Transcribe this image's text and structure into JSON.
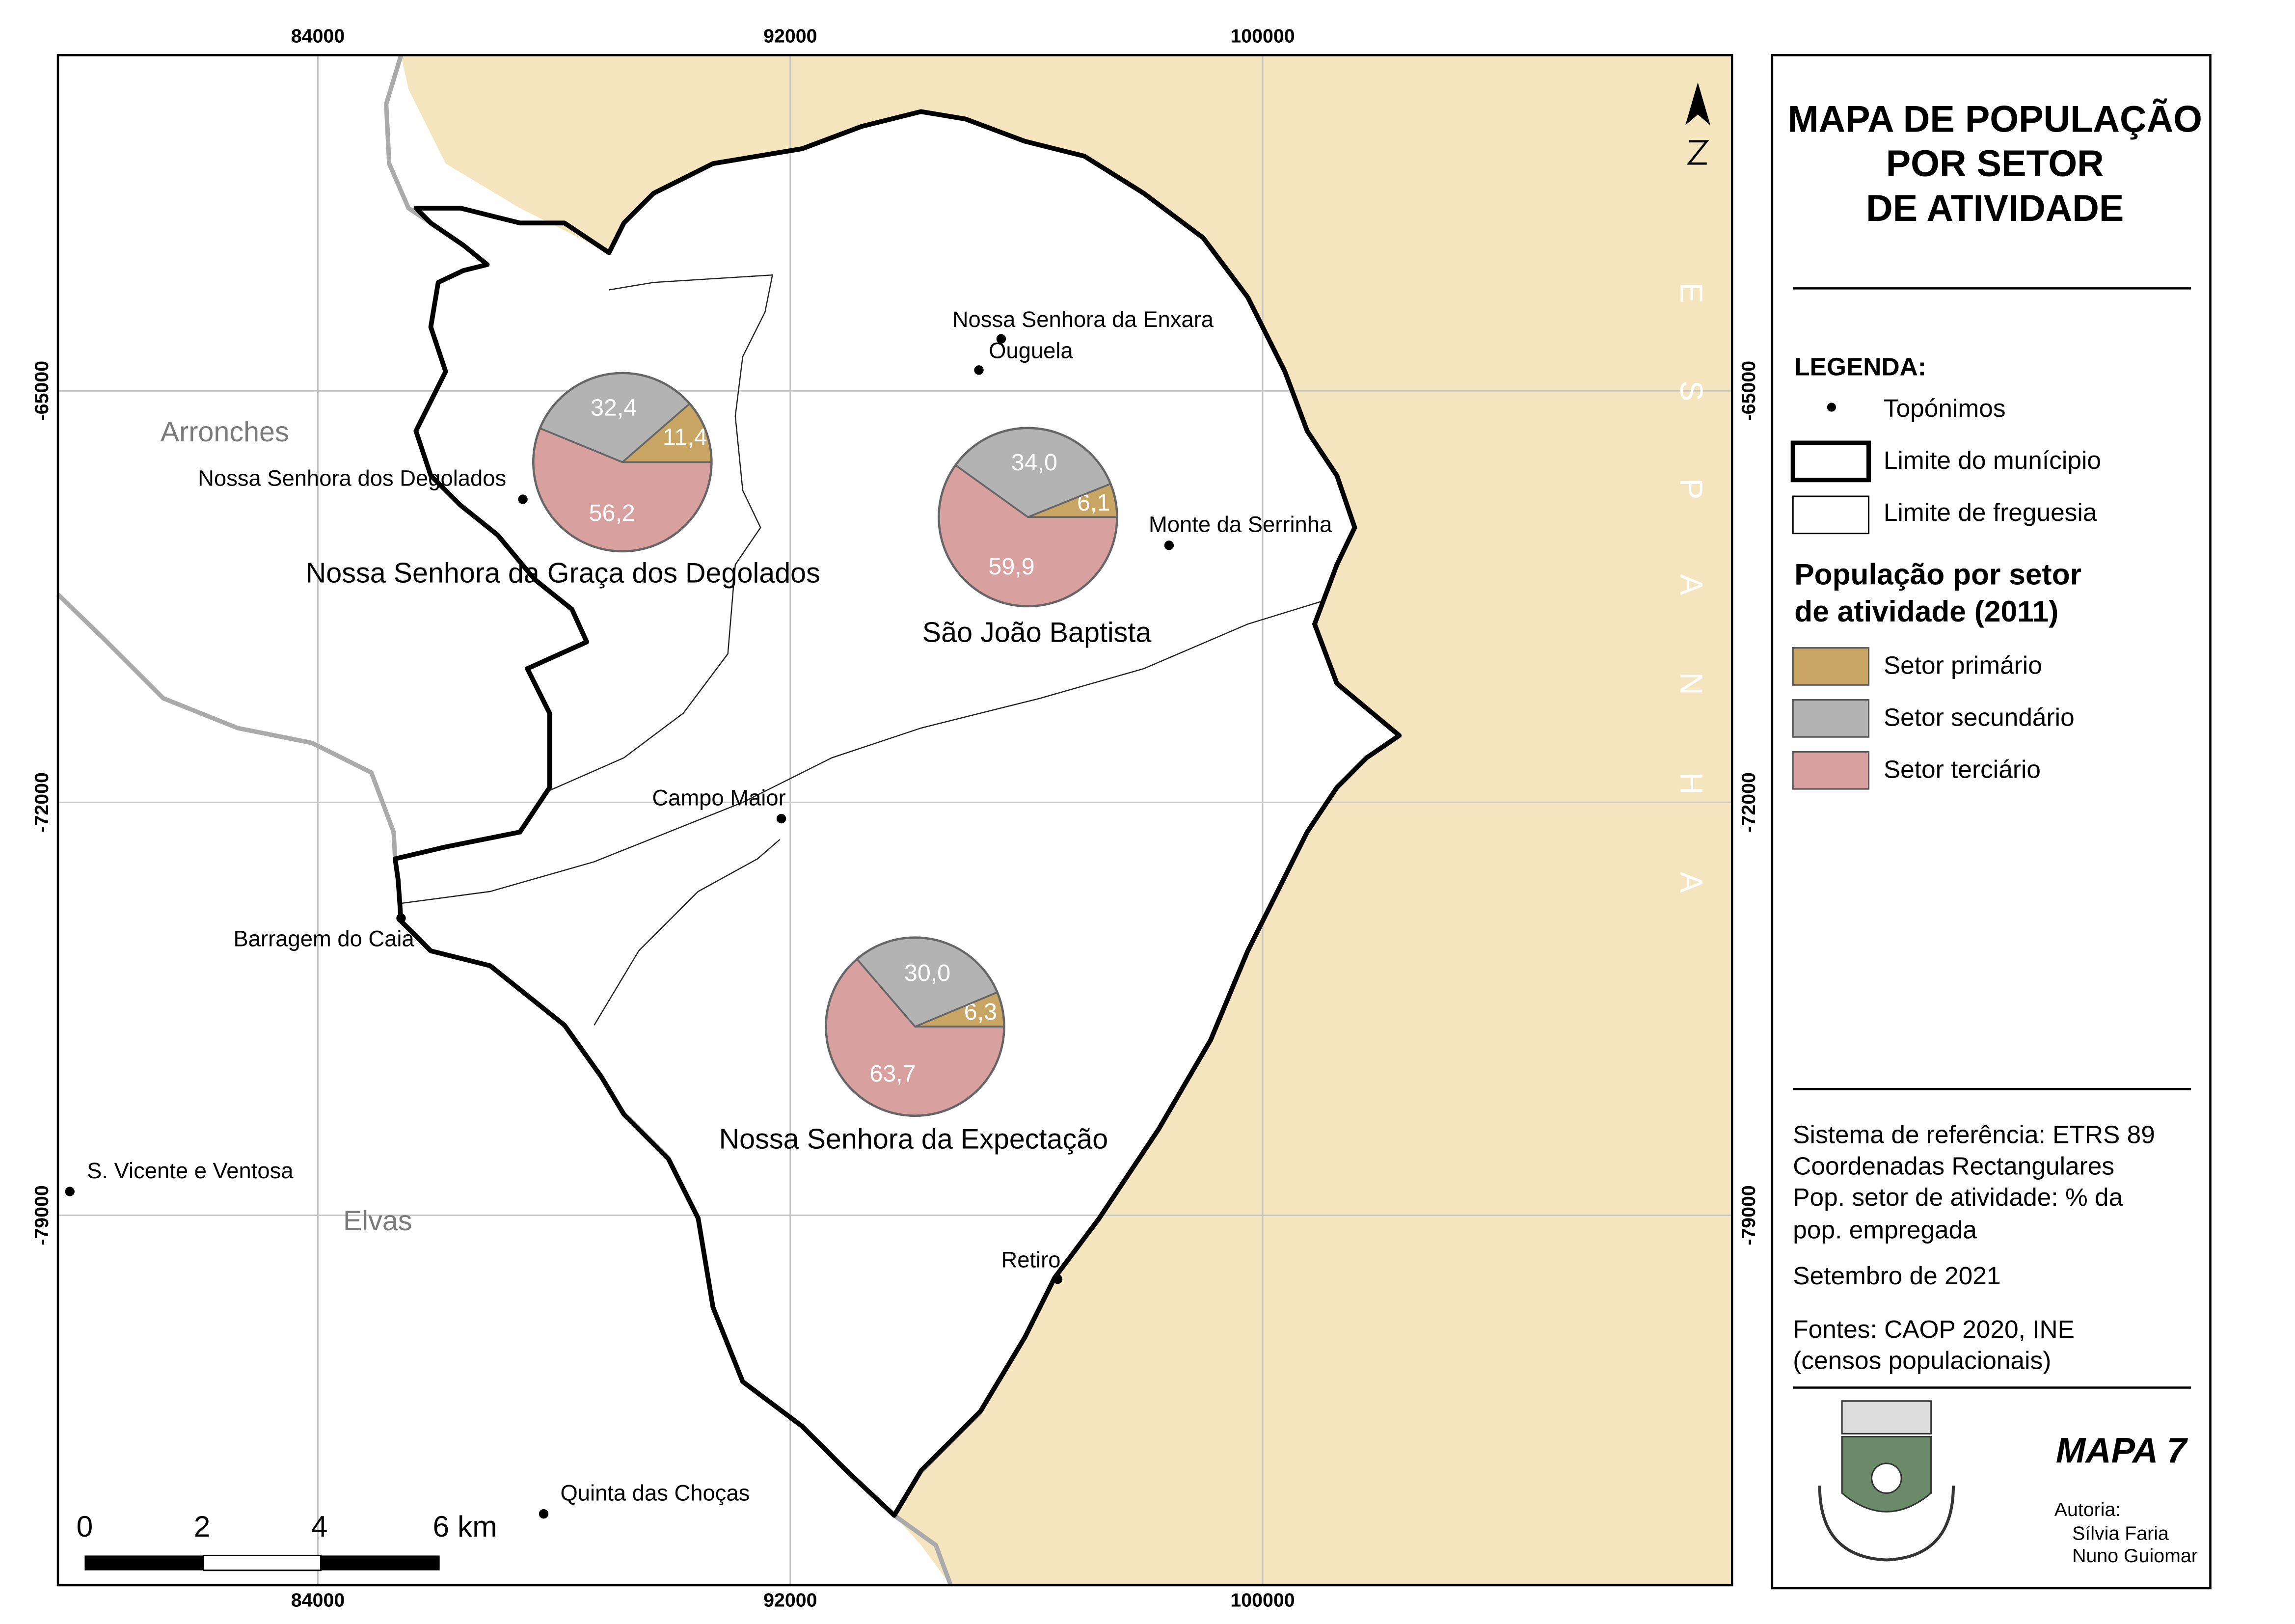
{
  "map": {
    "title": [
      "MAPA DE POPULAÇÃO",
      "POR SETOR",
      "DE ATIVIDADE"
    ],
    "x_ticks": [
      "84000",
      "92000",
      "100000"
    ],
    "y_ticks": [
      "-65000",
      "-72000",
      "-79000"
    ],
    "country_label": "ESPANHA",
    "neighbors": [
      "Arronches",
      "Elvas"
    ],
    "places": [
      "Nossa Senhora da Enxara",
      "Ouguela",
      "Nossa Senhora dos Degolados",
      "Monte da Serrinha",
      "Campo Maior",
      "Barragem do Caia",
      "S. Vicente e Ventosa",
      "Retiro",
      "Quinta das Choças"
    ],
    "sectors": [
      {
        "name": "Setor primário",
        "color": "#c9a564"
      },
      {
        "name": "Setor secundário",
        "color": "#b3b3b3"
      },
      {
        "name": "Setor terciário",
        "color": "#d9a0a0"
      }
    ],
    "parishes": [
      {
        "name": "Nossa Senhora da Graça dos Degolados",
        "values": [
          11.4,
          32.4,
          56.2
        ],
        "value_labels": [
          "11,4",
          "32,4",
          "56,2"
        ]
      },
      {
        "name": "São João Baptista",
        "values": [
          6.1,
          34.0,
          59.9
        ],
        "value_labels": [
          "6,1",
          "34,0",
          "59,9"
        ]
      },
      {
        "name": "Nossa Senhora da Expectação",
        "values": [
          6.3,
          30.0,
          63.7
        ],
        "value_labels": [
          "6,3",
          "30,0",
          "63,7"
        ]
      }
    ],
    "legend": {
      "heading": "LEGENDA:",
      "toponyms": "Topónimos",
      "municipality": "Limite do munícipio",
      "parish": "Limite de freguesia",
      "population_title": [
        "População por setor",
        "de atividade (2011)"
      ]
    },
    "notes": [
      "Sistema de referência: ETRS 89",
      "Coordenadas Rectangulares",
      "Pop. setor de atividade: % da",
      "pop. empregada",
      "Setembro de 2021",
      "Fontes: CAOP 2020, INE",
      "(censos populacionais)"
    ],
    "map_number": "MAPA 7",
    "authorship": {
      "label": "Autoria:",
      "names": [
        "Sílvia Faria",
        "Nuno Guiomar"
      ]
    },
    "scale_bar": [
      "0",
      "2",
      "4",
      "6 km"
    ]
  }
}
